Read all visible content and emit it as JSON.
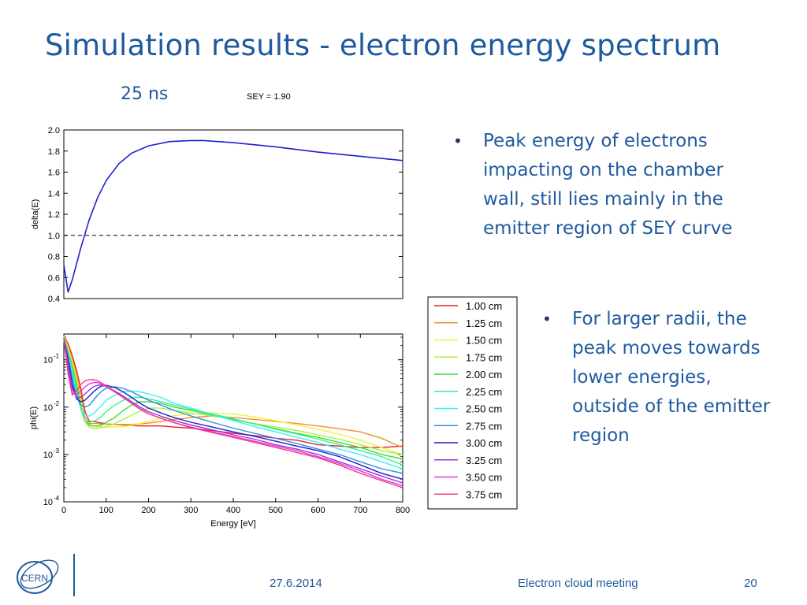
{
  "slide": {
    "title": "Simulation results - electron energy spectrum",
    "subtitle": "25 ns",
    "sey_label": "SEY = 1.90",
    "bullets": [
      "Peak energy of electrons impacting on the chamber wall, still lies mainly in the emitter region of SEY curve",
      "For larger radii, the peak moves towards lower energies, outside of the emitter region"
    ],
    "footer": {
      "date": "27.6.2014",
      "meeting": "Electron cloud meeting",
      "page": "20"
    },
    "logo_text": "CERN"
  },
  "chart_data": [
    {
      "type": "line",
      "ylabel": "delta(E)",
      "xlim": [
        0,
        800
      ],
      "ylim": [
        0.4,
        2.0
      ],
      "yticks": [
        0.4,
        0.6,
        0.8,
        1.0,
        1.2,
        1.4,
        1.6,
        1.8,
        2.0
      ],
      "reference_line": {
        "y": 1.0,
        "style": "dashed",
        "color": "#000000"
      },
      "series": [
        {
          "color": "#1f1fd0",
          "x": [
            0,
            10,
            20,
            40,
            60,
            80,
            100,
            130,
            160,
            200,
            250,
            300,
            330,
            400,
            500,
            600,
            700,
            800
          ],
          "y": [
            0.72,
            0.46,
            0.58,
            0.88,
            1.15,
            1.36,
            1.52,
            1.68,
            1.78,
            1.85,
            1.89,
            1.9,
            1.9,
            1.88,
            1.84,
            1.79,
            1.75,
            1.71
          ]
        }
      ]
    },
    {
      "type": "line",
      "xlabel": "Energy [eV]",
      "ylabel": "phi(E)",
      "yscale": "log",
      "xlim": [
        0,
        800
      ],
      "ylim": [
        0.0001,
        0.35
      ],
      "xticks": [
        0,
        100,
        200,
        300,
        400,
        500,
        600,
        700,
        800
      ],
      "yticks": [
        {
          "value": 0.1,
          "base": "10",
          "exp": "-1"
        },
        {
          "value": 0.01,
          "base": "10",
          "exp": "-2"
        },
        {
          "value": 0.001,
          "base": "10",
          "exp": "-3"
        },
        {
          "value": 0.0001,
          "base": "10",
          "exp": "-4"
        }
      ],
      "x": [
        0,
        10,
        20,
        30,
        40,
        50,
        60,
        70,
        80,
        90,
        100,
        120,
        140,
        160,
        180,
        200,
        230,
        260,
        300,
        350,
        400,
        450,
        500,
        550,
        600,
        650,
        700,
        750,
        800
      ],
      "legend_position": "outside-right",
      "series": [
        {
          "name": "1.00 cm",
          "color": "#e8202a",
          "y": [
            0.32,
            0.22,
            0.12,
            0.06,
            0.025,
            0.008,
            0.005,
            0.005,
            0.0048,
            0.0046,
            0.0044,
            0.0043,
            0.0042,
            0.0041,
            0.004,
            0.004,
            0.004,
            0.0038,
            0.0036,
            0.0032,
            0.0028,
            0.0025,
            0.0022,
            0.002,
            0.0016,
            0.0015,
            0.0014,
            0.0014,
            0.0015
          ]
        },
        {
          "name": "1.25 cm",
          "color": "#f0902a",
          "y": [
            0.32,
            0.2,
            0.1,
            0.05,
            0.02,
            0.006,
            0.0045,
            0.0045,
            0.0045,
            0.0044,
            0.0044,
            0.0043,
            0.0043,
            0.0043,
            0.0044,
            0.0046,
            0.005,
            0.0055,
            0.006,
            0.0065,
            0.006,
            0.0055,
            0.005,
            0.0045,
            0.004,
            0.0035,
            0.003,
            0.0022,
            0.0014
          ]
        },
        {
          "name": "1.50 cm",
          "color": "#f0f03a",
          "y": [
            0.31,
            0.18,
            0.09,
            0.04,
            0.015,
            0.005,
            0.004,
            0.004,
            0.0039,
            0.0038,
            0.0038,
            0.0038,
            0.0039,
            0.0041,
            0.0045,
            0.005,
            0.0058,
            0.0066,
            0.0072,
            0.0075,
            0.0072,
            0.0062,
            0.0052,
            0.0042,
            0.0034,
            0.0027,
            0.002,
            0.0014,
            0.001
          ]
        },
        {
          "name": "1.75 cm",
          "color": "#a8f040",
          "y": [
            0.3,
            0.16,
            0.08,
            0.035,
            0.012,
            0.005,
            0.0038,
            0.0036,
            0.0036,
            0.0037,
            0.0039,
            0.0045,
            0.0055,
            0.0068,
            0.0082,
            0.0095,
            0.0095,
            0.0085,
            0.0075,
            0.0065,
            0.0055,
            0.0045,
            0.0038,
            0.0032,
            0.0026,
            0.0021,
            0.0016,
            0.0012,
            0.001
          ]
        },
        {
          "name": "2.00 cm",
          "color": "#3adc3a",
          "y": [
            0.3,
            0.15,
            0.07,
            0.03,
            0.01,
            0.005,
            0.0042,
            0.004,
            0.004,
            0.0042,
            0.0048,
            0.006,
            0.0085,
            0.011,
            0.013,
            0.013,
            0.012,
            0.01,
            0.0085,
            0.0068,
            0.0055,
            0.0044,
            0.0035,
            0.0028,
            0.0023,
            0.0018,
            0.0014,
            0.001,
            0.0008
          ]
        },
        {
          "name": "2.25 cm",
          "color": "#3af090",
          "y": [
            0.29,
            0.14,
            0.06,
            0.025,
            0.009,
            0.005,
            0.0048,
            0.005,
            0.0055,
            0.0065,
            0.008,
            0.011,
            0.014,
            0.016,
            0.016,
            0.015,
            0.013,
            0.011,
            0.009,
            0.0072,
            0.0057,
            0.0044,
            0.0034,
            0.0027,
            0.0021,
            0.0016,
            0.0012,
            0.0009,
            0.0006
          ]
        },
        {
          "name": "2.50 cm",
          "color": "#3af0f0",
          "y": [
            0.29,
            0.13,
            0.05,
            0.02,
            0.009,
            0.0065,
            0.0065,
            0.0072,
            0.009,
            0.011,
            0.014,
            0.018,
            0.021,
            0.022,
            0.021,
            0.019,
            0.016,
            0.012,
            0.0095,
            0.007,
            0.0052,
            0.0039,
            0.003,
            0.0023,
            0.0018,
            0.0013,
            0.001,
            0.0007,
            0.0005
          ]
        },
        {
          "name": "2.75 cm",
          "color": "#2a90e8",
          "y": [
            0.28,
            0.12,
            0.04,
            0.017,
            0.011,
            0.01,
            0.011,
            0.014,
            0.018,
            0.022,
            0.025,
            0.027,
            0.025,
            0.021,
            0.017,
            0.014,
            0.011,
            0.0085,
            0.0065,
            0.0048,
            0.0036,
            0.0028,
            0.0022,
            0.0017,
            0.0013,
            0.001,
            0.0007,
            0.0005,
            0.0004
          ]
        },
        {
          "name": "3.00 cm",
          "color": "#1e1ec8",
          "y": [
            0.28,
            0.1,
            0.03,
            0.015,
            0.013,
            0.014,
            0.017,
            0.021,
            0.025,
            0.028,
            0.029,
            0.026,
            0.021,
            0.016,
            0.012,
            0.0095,
            0.0075,
            0.006,
            0.0048,
            0.0038,
            0.003,
            0.0024,
            0.0019,
            0.0015,
            0.0012,
            0.0009,
            0.0006,
            0.0004,
            0.0003
          ]
        },
        {
          "name": "3.25 cm",
          "color": "#9a30e0",
          "y": [
            0.28,
            0.08,
            0.025,
            0.016,
            0.016,
            0.019,
            0.023,
            0.027,
            0.029,
            0.029,
            0.027,
            0.022,
            0.017,
            0.013,
            0.01,
            0.008,
            0.0064,
            0.0052,
            0.0042,
            0.0033,
            0.0026,
            0.0021,
            0.0016,
            0.0013,
            0.001,
            0.0007,
            0.0005,
            0.00035,
            0.00025
          ]
        },
        {
          "name": "3.50 cm",
          "color": "#f030e0",
          "y": [
            0.27,
            0.06,
            0.02,
            0.018,
            0.022,
            0.027,
            0.031,
            0.033,
            0.033,
            0.03,
            0.027,
            0.021,
            0.016,
            0.012,
            0.009,
            0.0072,
            0.0058,
            0.0047,
            0.0038,
            0.003,
            0.0024,
            0.0019,
            0.0015,
            0.0012,
            0.0009,
            0.00065,
            0.00045,
            0.0003,
            0.00022
          ]
        },
        {
          "name": "3.75 cm",
          "color": "#f03a80",
          "y": [
            0.27,
            0.05,
            0.018,
            0.022,
            0.03,
            0.036,
            0.038,
            0.038,
            0.036,
            0.032,
            0.028,
            0.021,
            0.016,
            0.012,
            0.0092,
            0.0073,
            0.0058,
            0.0047,
            0.0037,
            0.0029,
            0.0023,
            0.0018,
            0.0014,
            0.0011,
            0.00085,
            0.0006,
            0.0004,
            0.00028,
            0.0002
          ]
        }
      ]
    }
  ]
}
